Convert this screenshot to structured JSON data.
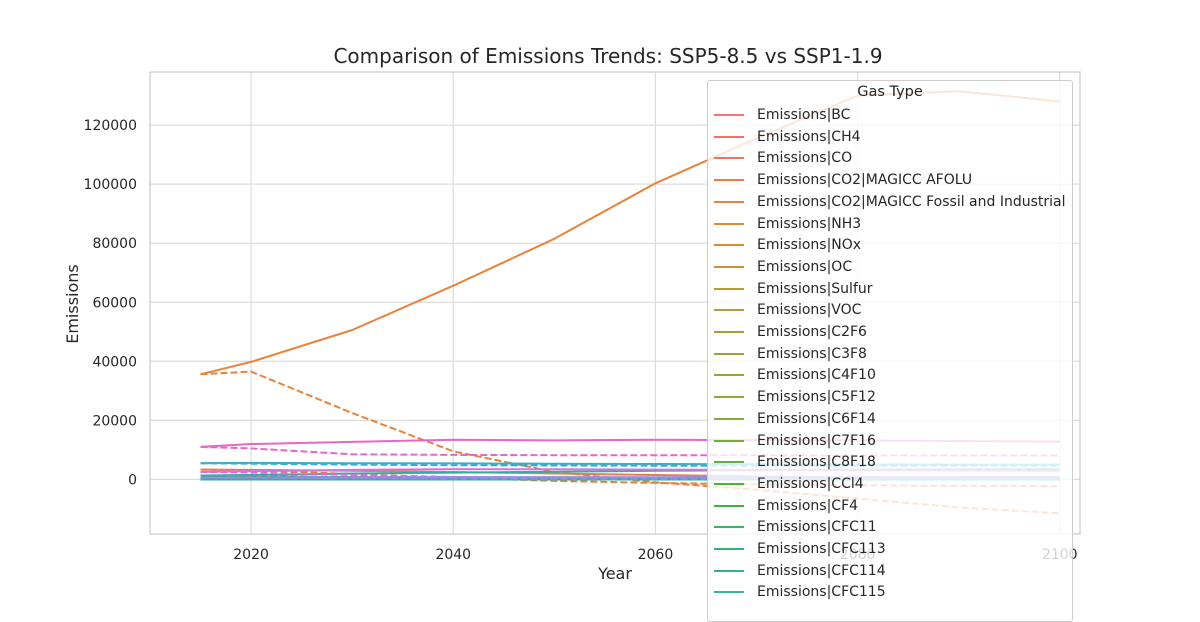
{
  "chart_data": {
    "type": "line",
    "title": "Comparison of Emissions Trends: SSP5-8.5 vs SSP1-1.9",
    "xlabel": "Year",
    "ylabel": "Emissions",
    "xlim": [
      2010,
      2102
    ],
    "ylim": [
      -18500,
      138000
    ],
    "xticks": [
      2020,
      2040,
      2060,
      2080,
      2100
    ],
    "xtick_labels": [
      "2020",
      "2040",
      "2060",
      "2080",
      "2100"
    ],
    "yticks": [
      0,
      20000,
      40000,
      60000,
      80000,
      100000,
      120000
    ],
    "ytick_labels": [
      "0",
      "20000",
      "40000",
      "60000",
      "80000",
      "100000",
      "120000"
    ],
    "grid": true,
    "legend_title": "Gas Type",
    "legend_placement": "upper-right",
    "x": [
      2015,
      2020,
      2030,
      2040,
      2050,
      2060,
      2070,
      2080,
      2090,
      2100
    ],
    "series": [
      {
        "name": "Emissions|BC",
        "color": "#f0747d",
        "ssp585": [
          8,
          8,
          8,
          7,
          6,
          6,
          5,
          5,
          5,
          5
        ],
        "ssp119": [
          8,
          7,
          5,
          4,
          3,
          3,
          2,
          2,
          2,
          2
        ]
      },
      {
        "name": "Emissions|CH4",
        "color": "#ef7467",
        "ssp585": [
          390,
          405,
          450,
          500,
          540,
          580,
          610,
          630,
          640,
          640
        ],
        "ssp119": [
          390,
          370,
          280,
          220,
          190,
          170,
          160,
          150,
          150,
          150
        ]
      },
      {
        "name": "Emissions|CO",
        "color": "#ee7654",
        "ssp585": [
          900,
          880,
          820,
          760,
          700,
          650,
          600,
          560,
          540,
          520
        ],
        "ssp119": [
          900,
          850,
          620,
          480,
          400,
          350,
          320,
          300,
          290,
          280
        ]
      },
      {
        "name": "Emissions|CO2|MAGICC AFOLU",
        "color": "#ee7a44",
        "ssp585": [
          3300,
          3200,
          2900,
          2500,
          2000,
          1500,
          1000,
          600,
          300,
          200
        ],
        "ssp119": [
          3300,
          3100,
          1800,
          600,
          -500,
          -1200,
          -1700,
          -2000,
          -2200,
          -2300
        ]
      },
      {
        "name": "Emissions|CO2|MAGICC Fossil and Industrial",
        "color": "#e8833c",
        "ssp585": [
          35600,
          39800,
          50600,
          65600,
          81500,
          100300,
          115500,
          130000,
          131500,
          128000
        ],
        "ssp119": [
          35600,
          36500,
          22500,
          9500,
          2500,
          -1000,
          -3500,
          -6500,
          -9500,
          -11500
        ]
      },
      {
        "name": "Emissions|NH3",
        "color": "#de8a36",
        "ssp585": [
          50,
          52,
          55,
          58,
          60,
          62,
          63,
          64,
          64,
          64
        ],
        "ssp119": [
          50,
          49,
          45,
          42,
          40,
          38,
          37,
          36,
          35,
          35
        ]
      },
      {
        "name": "Emissions|NOx",
        "color": "#d28f35",
        "ssp585": [
          140,
          145,
          150,
          148,
          140,
          130,
          120,
          110,
          100,
          95
        ],
        "ssp119": [
          140,
          130,
          95,
          70,
          55,
          45,
          40,
          36,
          34,
          33
        ]
      },
      {
        "name": "Emissions|OC",
        "color": "#c89335",
        "ssp585": [
          35,
          35,
          34,
          33,
          31,
          30,
          29,
          28,
          27,
          27
        ],
        "ssp119": [
          35,
          33,
          26,
          21,
          18,
          16,
          15,
          14,
          14,
          14
        ]
      },
      {
        "name": "Emissions|Sulfur",
        "color": "#be9835",
        "ssp585": [
          100,
          95,
          85,
          75,
          65,
          55,
          48,
          42,
          38,
          35
        ],
        "ssp119": [
          100,
          85,
          45,
          25,
          16,
          12,
          10,
          9,
          8,
          8
        ]
      },
      {
        "name": "Emissions|VOC",
        "color": "#b39b35",
        "ssp585": [
          210,
          212,
          215,
          215,
          212,
          208,
          203,
          198,
          195,
          192
        ],
        "ssp119": [
          210,
          195,
          140,
          105,
          88,
          78,
          72,
          68,
          66,
          65
        ]
      },
      {
        "name": "Emissions|C2F6",
        "color": "#a89e35",
        "ssp585": [
          2,
          2,
          3,
          3,
          4,
          4,
          4,
          5,
          5,
          5
        ],
        "ssp119": [
          2,
          2,
          1,
          1,
          1,
          1,
          1,
          1,
          1,
          1
        ]
      },
      {
        "name": "Emissions|C3F8",
        "color": "#a0a135",
        "ssp585": [
          0.3,
          0.3,
          0.3,
          0.4,
          0.4,
          0.4,
          0.4,
          0.5,
          0.5,
          0.5
        ],
        "ssp119": [
          0.3,
          0.2,
          0.2,
          0.1,
          0.1,
          0.1,
          0.1,
          0.1,
          0.1,
          0.1
        ]
      },
      {
        "name": "Emissions|C4F10",
        "color": "#98a436",
        "ssp585": [
          0.1,
          0.1,
          0.1,
          0.1,
          0.1,
          0.1,
          0.1,
          0.1,
          0.1,
          0.1
        ],
        "ssp119": [
          0.1,
          0.1,
          0.1,
          0.1,
          0.1,
          0.1,
          0.1,
          0.1,
          0.1,
          0.1
        ]
      },
      {
        "name": "Emissions|C5F12",
        "color": "#8fa736",
        "ssp585": [
          0.1,
          0.1,
          0.1,
          0.1,
          0.1,
          0.1,
          0.1,
          0.1,
          0.1,
          0.1
        ],
        "ssp119": [
          0.1,
          0.1,
          0.1,
          0.1,
          0.1,
          0.1,
          0.1,
          0.1,
          0.1,
          0.1
        ]
      },
      {
        "name": "Emissions|C6F14",
        "color": "#83aa36",
        "ssp585": [
          0.3,
          0.3,
          0.3,
          0.3,
          0.3,
          0.3,
          0.3,
          0.3,
          0.3,
          0.3
        ],
        "ssp119": [
          0.3,
          0.3,
          0.2,
          0.2,
          0.2,
          0.2,
          0.2,
          0.2,
          0.2,
          0.2
        ]
      },
      {
        "name": "Emissions|C7F16",
        "color": "#75ad36",
        "ssp585": [
          0.2,
          0.2,
          0.2,
          0.2,
          0.2,
          0.2,
          0.2,
          0.2,
          0.2,
          0.2
        ],
        "ssp119": [
          0.2,
          0.2,
          0.1,
          0.1,
          0.1,
          0.1,
          0.1,
          0.1,
          0.1,
          0.1
        ]
      },
      {
        "name": "Emissions|C8F18",
        "color": "#62b136",
        "ssp585": [
          0.1,
          0.1,
          0.1,
          0.1,
          0.1,
          0.1,
          0.1,
          0.1,
          0.1,
          0.1
        ],
        "ssp119": [
          0.1,
          0.1,
          0.1,
          0.1,
          0.1,
          0.1,
          0.1,
          0.1,
          0.1,
          0.1
        ]
      },
      {
        "name": "Emissions|CCl4",
        "color": "#47b436",
        "ssp585": [
          40,
          35,
          25,
          15,
          10,
          5,
          3,
          2,
          1,
          1
        ],
        "ssp119": [
          40,
          33,
          20,
          10,
          5,
          2,
          1,
          1,
          0,
          0
        ]
      },
      {
        "name": "Emissions|CF4",
        "color": "#36b64a",
        "ssp585": [
          12,
          13,
          15,
          17,
          19,
          21,
          23,
          24,
          25,
          26
        ],
        "ssp119": [
          12,
          11,
          8,
          6,
          5,
          4,
          4,
          4,
          4,
          4
        ]
      },
      {
        "name": "Emissions|CFC11",
        "color": "#35b567",
        "ssp585": [
          60,
          55,
          45,
          35,
          28,
          22,
          17,
          13,
          10,
          8
        ],
        "ssp119": [
          60,
          52,
          38,
          27,
          20,
          15,
          11,
          8,
          6,
          5
        ]
      },
      {
        "name": "Emissions|CFC113",
        "color": "#35b47a",
        "ssp585": [
          5,
          4,
          3,
          2,
          1,
          1,
          1,
          0,
          0,
          0
        ],
        "ssp119": [
          5,
          4,
          3,
          2,
          1,
          1,
          1,
          0,
          0,
          0
        ]
      },
      {
        "name": "Emissions|CFC114",
        "color": "#35b388",
        "ssp585": [
          1,
          1,
          1,
          1,
          1,
          0,
          0,
          0,
          0,
          0
        ],
        "ssp119": [
          1,
          1,
          1,
          1,
          0,
          0,
          0,
          0,
          0,
          0
        ]
      },
      {
        "name": "Emissions|CFC115",
        "color": "#36b294",
        "ssp585": [
          1,
          1,
          1,
          1,
          0,
          0,
          0,
          0,
          0,
          0
        ],
        "ssp119": [
          1,
          1,
          1,
          0,
          0,
          0,
          0,
          0,
          0,
          0
        ]
      }
    ],
    "extra_series": [
      {
        "color": "#3aaec5",
        "ssp585": [
          5500,
          5600,
          5500,
          5400,
          5300,
          5200,
          5100,
          5050,
          5000,
          5000
        ],
        "ssp119": [
          5500,
          5300,
          5000,
          4800,
          4700,
          4650,
          4600,
          4600,
          4600,
          4600
        ]
      },
      {
        "color": "#36ada4",
        "ssp585": [
          1300,
          1500,
          2000,
          2300,
          2600,
          2900,
          3100,
          3300,
          3400,
          3500
        ],
        "ssp119": [
          1300,
          1200,
          700,
          500,
          400,
          350,
          300,
          300,
          300,
          300
        ]
      },
      {
        "color": "#e866c6",
        "ssp585": [
          11000,
          12000,
          12700,
          13400,
          13200,
          13400,
          13300,
          13200,
          13000,
          12800
        ],
        "ssp119": [
          11000,
          10500,
          8500,
          8300,
          8200,
          8200,
          8150,
          8100,
          8100,
          8100
        ]
      },
      {
        "color": "#d770e6",
        "ssp585": [
          2500,
          2800,
          3200,
          3500,
          3400,
          3300,
          3200,
          3100,
          3000,
          2900
        ],
        "ssp119": [
          2500,
          2300,
          1500,
          800,
          600,
          500,
          450,
          400,
          400,
          400
        ]
      },
      {
        "color": "#8e8ef0",
        "ssp585": [
          600,
          620,
          660,
          700,
          720,
          740,
          760,
          770,
          780,
          790
        ],
        "ssp119": [
          600,
          560,
          400,
          300,
          250,
          220,
          200,
          190,
          180,
          180
        ]
      }
    ]
  }
}
